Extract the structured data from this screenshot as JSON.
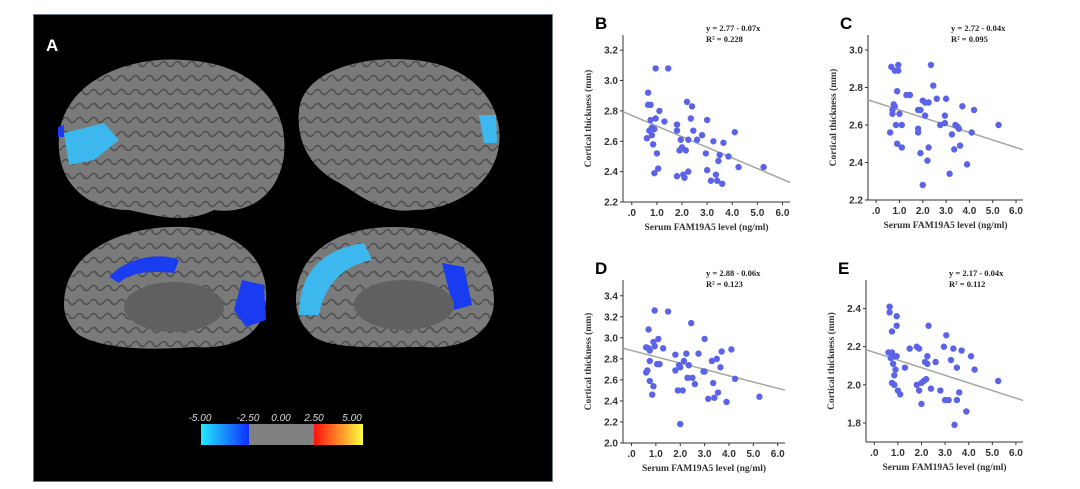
{
  "panel_a": {
    "label": "A",
    "colorbar": {
      "ticks": [
        "-5.00",
        "-2.50",
        "0.00",
        "2.50",
        "5.00"
      ],
      "colors": {
        "neg_low": "#22e8ff",
        "neg_high": "#1030ff",
        "neutral": "#808080",
        "pos_low": "#ff1010",
        "pos_high": "#ffff40"
      }
    },
    "brain_color": "#7a7a7a",
    "highlight_colors": [
      "#3cb8ee",
      "#1a3cf0"
    ]
  },
  "chart_data": [
    {
      "panel": "B",
      "type": "scatter",
      "equation": "y = 2.77 - 0.07x",
      "r2": "R² = 0.228",
      "xlabel": "Serum FAM19A5 level (ng/ml)",
      "ylabel": "Cortical thickness (mm)",
      "xticks": [
        ".0",
        "1.0",
        "2.0",
        "3.0",
        "4.0",
        "5.0",
        "6.0"
      ],
      "yticks": [
        "2.2",
        "2.4",
        "2.6",
        "2.8",
        "3.0",
        "3.2"
      ],
      "xlim": [
        -0.35,
        6.3
      ],
      "ylim": [
        2.2,
        3.3
      ],
      "fit": {
        "intercept": 2.77,
        "slope": -0.07
      },
      "points": [
        [
          0.95,
          3.08
        ],
        [
          1.45,
          3.08
        ],
        [
          0.65,
          2.92
        ],
        [
          0.65,
          2.84
        ],
        [
          0.75,
          2.84
        ],
        [
          2.2,
          2.86
        ],
        [
          2.4,
          2.83
        ],
        [
          1.1,
          2.8
        ],
        [
          0.75,
          2.74
        ],
        [
          0.95,
          2.75
        ],
        [
          1.3,
          2.73
        ],
        [
          2.35,
          2.75
        ],
        [
          3.0,
          2.74
        ],
        [
          1.8,
          2.71
        ],
        [
          0.7,
          2.67
        ],
        [
          0.8,
          2.69
        ],
        [
          0.9,
          2.68
        ],
        [
          1.8,
          2.67
        ],
        [
          2.45,
          2.67
        ],
        [
          0.6,
          2.62
        ],
        [
          0.8,
          2.64
        ],
        [
          1.95,
          2.61
        ],
        [
          2.25,
          2.61
        ],
        [
          2.6,
          2.61
        ],
        [
          2.8,
          2.64
        ],
        [
          3.25,
          2.6
        ],
        [
          3.65,
          2.59
        ],
        [
          4.1,
          2.66
        ],
        [
          0.85,
          2.58
        ],
        [
          1.0,
          2.52
        ],
        [
          1.9,
          2.54
        ],
        [
          2.0,
          2.56
        ],
        [
          2.15,
          2.54
        ],
        [
          2.95,
          2.52
        ],
        [
          3.5,
          2.51
        ],
        [
          3.85,
          2.5
        ],
        [
          3.45,
          2.47
        ],
        [
          4.25,
          2.43
        ],
        [
          5.25,
          2.43
        ],
        [
          1.05,
          2.42
        ],
        [
          0.9,
          2.39
        ],
        [
          1.8,
          2.37
        ],
        [
          2.05,
          2.38
        ],
        [
          2.1,
          2.36
        ],
        [
          2.25,
          2.4
        ],
        [
          3.0,
          2.41
        ],
        [
          3.35,
          2.38
        ],
        [
          3.15,
          2.34
        ],
        [
          3.4,
          2.34
        ],
        [
          3.6,
          2.32
        ]
      ]
    },
    {
      "panel": "C",
      "type": "scatter",
      "equation": "y = 2.72 - 0.04x",
      "r2": "R² = 0.095",
      "xlabel": "Serum FAM19A5 level (ng/ml)",
      "ylabel": "Cortical thickness (mm)",
      "xticks": [
        ".0",
        "1.0",
        "2.0",
        "3.0",
        "4.0",
        "5.0",
        "6.0"
      ],
      "yticks": [
        "2.2",
        "2.4",
        "2.6",
        "2.8",
        "3.0"
      ],
      "xlim": [
        -0.35,
        6.3
      ],
      "ylim": [
        2.2,
        3.08
      ],
      "fit": {
        "intercept": 2.72,
        "slope": -0.04
      },
      "points": [
        [
          0.65,
          2.91
        ],
        [
          0.8,
          2.89
        ],
        [
          0.95,
          2.92
        ],
        [
          0.95,
          2.89
        ],
        [
          2.35,
          2.92
        ],
        [
          2.45,
          2.81
        ],
        [
          0.9,
          2.78
        ],
        [
          1.3,
          2.76
        ],
        [
          1.45,
          2.76
        ],
        [
          2.0,
          2.73
        ],
        [
          2.1,
          2.72
        ],
        [
          2.25,
          2.72
        ],
        [
          2.6,
          2.74
        ],
        [
          3.0,
          2.74
        ],
        [
          0.75,
          2.71
        ],
        [
          0.8,
          2.7
        ],
        [
          0.7,
          2.68
        ],
        [
          0.7,
          2.66
        ],
        [
          1.0,
          2.66
        ],
        [
          1.8,
          2.68
        ],
        [
          1.9,
          2.68
        ],
        [
          2.1,
          2.65
        ],
        [
          3.7,
          2.7
        ],
        [
          4.2,
          2.68
        ],
        [
          0.85,
          2.6
        ],
        [
          1.1,
          2.6
        ],
        [
          0.6,
          2.56
        ],
        [
          1.8,
          2.58
        ],
        [
          1.8,
          2.56
        ],
        [
          2.75,
          2.6
        ],
        [
          2.95,
          2.61
        ],
        [
          2.95,
          2.65
        ],
        [
          3.4,
          2.6
        ],
        [
          3.5,
          2.59
        ],
        [
          3.55,
          2.58
        ],
        [
          3.25,
          2.55
        ],
        [
          4.1,
          2.56
        ],
        [
          5.25,
          2.6
        ],
        [
          0.9,
          2.5
        ],
        [
          1.1,
          2.48
        ],
        [
          1.9,
          2.45
        ],
        [
          2.25,
          2.48
        ],
        [
          2.2,
          2.41
        ],
        [
          3.35,
          2.47
        ],
        [
          3.6,
          2.49
        ],
        [
          3.9,
          2.39
        ],
        [
          3.15,
          2.34
        ],
        [
          2.0,
          2.28
        ]
      ]
    },
    {
      "panel": "D",
      "type": "scatter",
      "equation": "y = 2.88 - 0.06x",
      "r2": "R² = 0.123",
      "xlabel": "Serum FAM19A5 level (ng/ml)",
      "ylabel": "Cortical thickness (mm)",
      "xticks": [
        ".0",
        "1.0",
        "2.0",
        "3.0",
        "4.0",
        "5.0",
        "6.0"
      ],
      "yticks": [
        "2.0",
        "2.2",
        "2.4",
        "2.6",
        "2.8",
        "3.0",
        "3.2",
        "3.4"
      ],
      "xlim": [
        -0.35,
        6.3
      ],
      "ylim": [
        2.0,
        3.55
      ],
      "fit": {
        "intercept": 2.88,
        "slope": -0.06
      },
      "points": [
        [
          0.95,
          3.26
        ],
        [
          1.5,
          3.25
        ],
        [
          2.45,
          3.14
        ],
        [
          0.7,
          3.08
        ],
        [
          1.1,
          2.99
        ],
        [
          3.0,
          2.99
        ],
        [
          0.9,
          2.96
        ],
        [
          0.6,
          2.91
        ],
        [
          0.7,
          2.9
        ],
        [
          0.75,
          2.88
        ],
        [
          0.95,
          2.92
        ],
        [
          1.3,
          2.9
        ],
        [
          4.1,
          2.89
        ],
        [
          3.7,
          2.87
        ],
        [
          1.8,
          2.84
        ],
        [
          2.25,
          2.85
        ],
        [
          2.75,
          2.85
        ],
        [
          0.75,
          2.78
        ],
        [
          1.05,
          2.75
        ],
        [
          1.15,
          2.75
        ],
        [
          2.15,
          2.78
        ],
        [
          2.35,
          2.74
        ],
        [
          1.95,
          2.74
        ],
        [
          3.3,
          2.78
        ],
        [
          3.5,
          2.8
        ],
        [
          3.65,
          2.72
        ],
        [
          0.6,
          2.67
        ],
        [
          0.65,
          2.69
        ],
        [
          1.8,
          2.69
        ],
        [
          2.0,
          2.72
        ],
        [
          2.3,
          2.62
        ],
        [
          2.5,
          2.62
        ],
        [
          2.95,
          2.68
        ],
        [
          3.0,
          2.68
        ],
        [
          4.25,
          2.61
        ],
        [
          0.75,
          2.59
        ],
        [
          2.6,
          2.56
        ],
        [
          3.35,
          2.57
        ],
        [
          0.9,
          2.54
        ],
        [
          1.9,
          2.5
        ],
        [
          2.1,
          2.5
        ],
        [
          3.55,
          2.48
        ],
        [
          0.85,
          2.46
        ],
        [
          3.15,
          2.42
        ],
        [
          3.4,
          2.43
        ],
        [
          3.9,
          2.39
        ],
        [
          5.25,
          2.44
        ],
        [
          2.0,
          2.18
        ]
      ]
    },
    {
      "panel": "E",
      "type": "scatter",
      "equation": "y = 2.17 - 0.04x",
      "r2": "R² = 0.112",
      "xlabel": "Serum FAM19A5 level (ng/ml)",
      "ylabel": "Cortical thickness (mm)",
      "xticks": [
        ".0",
        "1.0",
        "2.0",
        "3.0",
        "4.0",
        "5.0",
        "6.0"
      ],
      "yticks": [
        "1.8",
        "2.0",
        "2.2",
        "2.4"
      ],
      "xlim": [
        -0.35,
        6.3
      ],
      "ylim": [
        1.7,
        2.55
      ],
      "fit": {
        "intercept": 2.17,
        "slope": -0.04
      },
      "points": [
        [
          0.65,
          2.41
        ],
        [
          0.65,
          2.38
        ],
        [
          0.95,
          2.36
        ],
        [
          0.95,
          2.31
        ],
        [
          2.3,
          2.31
        ],
        [
          0.75,
          2.28
        ],
        [
          3.05,
          2.26
        ],
        [
          1.5,
          2.19
        ],
        [
          1.8,
          2.2
        ],
        [
          1.9,
          2.19
        ],
        [
          2.95,
          2.2
        ],
        [
          3.35,
          2.19
        ],
        [
          3.7,
          2.18
        ],
        [
          0.6,
          2.17
        ],
        [
          0.75,
          2.17
        ],
        [
          0.85,
          2.15
        ],
        [
          0.95,
          2.15
        ],
        [
          0.7,
          2.14
        ],
        [
          2.25,
          2.15
        ],
        [
          4.1,
          2.15
        ],
        [
          2.15,
          2.12
        ],
        [
          2.25,
          2.11
        ],
        [
          2.6,
          2.12
        ],
        [
          3.25,
          2.13
        ],
        [
          3.5,
          2.09
        ],
        [
          4.25,
          2.08
        ],
        [
          0.8,
          2.11
        ],
        [
          0.9,
          2.08
        ],
        [
          1.3,
          2.09
        ],
        [
          0.85,
          2.05
        ],
        [
          2.1,
          2.02
        ],
        [
          2.2,
          2.03
        ],
        [
          2.0,
          2.01
        ],
        [
          1.8,
          2.0
        ],
        [
          0.75,
          2.01
        ],
        [
          0.85,
          2.0
        ],
        [
          2.4,
          1.98
        ],
        [
          5.25,
          2.02
        ],
        [
          1.0,
          1.97
        ],
        [
          1.1,
          1.95
        ],
        [
          1.9,
          1.97
        ],
        [
          2.8,
          1.97
        ],
        [
          3.0,
          1.92
        ],
        [
          3.15,
          1.92
        ],
        [
          3.5,
          1.92
        ],
        [
          3.6,
          1.96
        ],
        [
          2.0,
          1.9
        ],
        [
          3.9,
          1.86
        ],
        [
          3.4,
          1.79
        ]
      ]
    }
  ],
  "style": {
    "point_color": "#5b63e8",
    "fit_color": "#a0a8a0",
    "axis_color": "#333333"
  }
}
